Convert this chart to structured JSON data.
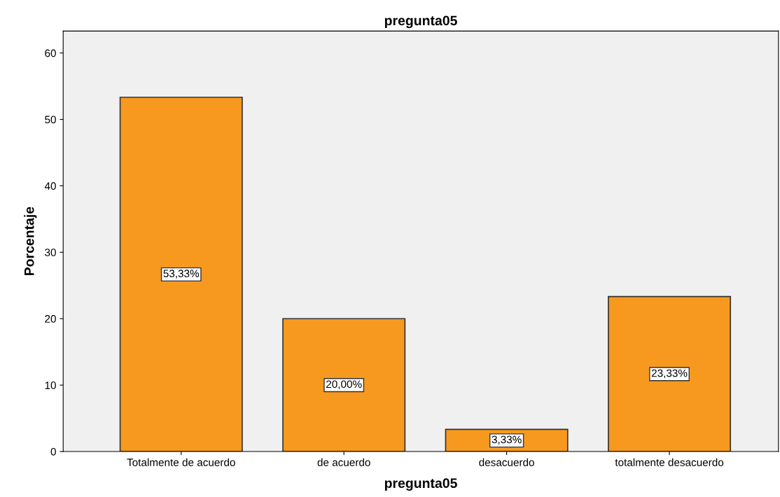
{
  "chart_data": {
    "type": "bar",
    "title": "pregunta05",
    "xlabel": "pregunta05",
    "ylabel": "Porcentaje",
    "categories": [
      "Totalmente de acuerdo",
      "de acuerdo",
      "desacuerdo",
      "totalmente desacuerdo"
    ],
    "values": [
      53.33,
      20.0,
      3.33,
      23.33
    ],
    "color": "#f7991f",
    "value_labels": [
      "53,33%",
      "20,00%",
      "3,33%",
      "23,33%"
    ],
    "ylim": [
      0,
      63.3
    ],
    "yticks": [
      0,
      10,
      20,
      30,
      40,
      50,
      60
    ],
    "grid": false,
    "legend": false
  }
}
